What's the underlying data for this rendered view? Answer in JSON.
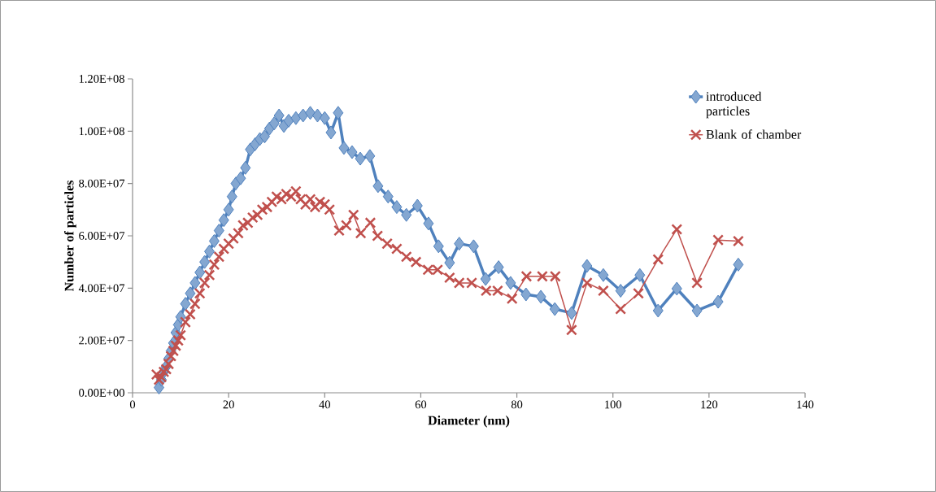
{
  "chart_data": {
    "type": "line",
    "xlabel": "Diameter (nm)",
    "ylabel": "Number of particles",
    "xlim": [
      0,
      140
    ],
    "xticks": [
      0,
      20,
      40,
      60,
      80,
      100,
      120,
      140
    ],
    "ylim": [
      0,
      120000000.0
    ],
    "yticks": [
      {
        "value": 0,
        "label": "0.00E+00"
      },
      {
        "value": 20000000.0,
        "label": "2.00E+07"
      },
      {
        "value": 40000000.0,
        "label": "4.00E+07"
      },
      {
        "value": 60000000.0,
        "label": "6.00E+07"
      },
      {
        "value": 80000000.0,
        "label": "8.00E+07"
      },
      {
        "value": 100000000.0,
        "label": "1.00E+08"
      },
      {
        "value": 120000000.0,
        "label": "1.20E+08"
      }
    ],
    "grid": false,
    "legend": "top right",
    "series": [
      {
        "name": "introduced particles",
        "color": "#4f81bd",
        "marker": "diamond",
        "x": [
          5.5,
          6,
          6.5,
          7,
          7.5,
          8,
          8.5,
          9,
          9.5,
          10,
          11,
          12,
          13,
          14,
          15,
          16,
          17,
          18,
          19,
          20,
          20.7,
          21.5,
          22.5,
          23.5,
          24.5,
          25.5,
          26.5,
          27.5,
          28.5,
          29.5,
          30.5,
          31.5,
          32.5,
          34,
          35.5,
          37,
          38.5,
          40,
          41.3,
          42.8,
          44,
          45.7,
          47.4,
          49.4,
          51.1,
          53.2,
          55,
          57,
          59.3,
          61.6,
          63.7,
          66,
          68,
          71,
          73.5,
          76.2,
          78.7,
          81.9,
          85,
          87.9,
          91.4,
          94.6,
          98,
          101.6,
          105.6,
          109.4,
          113.3,
          117.5,
          121.9,
          126.1
        ],
        "values": [
          2000000.0,
          5000000.0,
          8000000.0,
          10000000.0,
          13000000.0,
          16000000.0,
          19000000.0,
          23000000.0,
          26000000.0,
          29000000.0,
          34000000.0,
          38000000.0,
          42000000.0,
          46000000.0,
          50000000.0,
          54000000.0,
          58000000.0,
          62000000.0,
          66000000.0,
          70000000.0,
          75000000.0,
          80000000.0,
          82000000.0,
          86000000.0,
          93000000.0,
          95000000.0,
          97000000.0,
          98000000.0,
          101000000.0,
          103000000.0,
          106000000.0,
          102000000.0,
          104000000.0,
          105000000.0,
          106000000.0,
          107000000.0,
          106000000.0,
          105000000.0,
          99500000.0,
          107000000.0,
          93600000.0,
          92000000.0,
          89500000.0,
          90500000.0,
          79000000.0,
          75000000.0,
          71000000.0,
          68000000.0,
          71500000.0,
          64700000.0,
          56000000.0,
          49700000.0,
          57000000.0,
          56000000.0,
          43500000.0,
          48000000.0,
          42000000.0,
          37600000.0,
          36700000.0,
          32000000.0,
          30500000.0,
          48500000.0,
          45000000.0,
          39000000.0,
          45000000.0,
          31400000.0,
          39800000.0,
          31400000.0,
          34800000.0,
          49000000.0
        ]
      },
      {
        "name": "Blank of chamber",
        "color": "#c0504d",
        "marker": "cross",
        "x": [
          5,
          5.5,
          6,
          6.5,
          7,
          7.5,
          8,
          8.5,
          9,
          9.5,
          10,
          11,
          12,
          13,
          14,
          15,
          16,
          17,
          18,
          19,
          20,
          21,
          22,
          23,
          24,
          25,
          26,
          27,
          28,
          29,
          30,
          31,
          32,
          33,
          34,
          35,
          36,
          37,
          38,
          39,
          40,
          41,
          43,
          44.5,
          46,
          47.5,
          49.5,
          51,
          53,
          55,
          57,
          59,
          61.5,
          63.5,
          66,
          68,
          70.6,
          73.6,
          76,
          79,
          82,
          85.3,
          88,
          91.4,
          94.6,
          98,
          101.6,
          105.3,
          109.4,
          113.3,
          117.5,
          121.9,
          126.1
        ],
        "values": [
          7000000.0,
          5000000.0,
          6000000.0,
          8000000.0,
          9000000.0,
          11000000.0,
          14000000.0,
          16000000.0,
          18000000.0,
          20000000.0,
          22000000.0,
          27000000.0,
          30000000.0,
          34000000.0,
          38000000.0,
          42000000.0,
          45000000.0,
          49000000.0,
          52000000.0,
          55000000.0,
          57000000.0,
          59000000.0,
          61000000.0,
          64000000.0,
          65000000.0,
          67000000.0,
          68000000.0,
          70000000.0,
          71000000.0,
          73000000.0,
          75000000.0,
          74000000.0,
          76000000.0,
          75000000.0,
          77000000.0,
          74000000.0,
          72000000.0,
          74000000.0,
          71000000.0,
          73000000.0,
          72000000.0,
          70000000.0,
          62000000.0,
          64000000.0,
          68000000.0,
          61000000.0,
          65000000.0,
          60000000.0,
          57000000.0,
          55000000.0,
          52000000.0,
          50000000.0,
          47000000.0,
          47000000.0,
          44000000.0,
          42000000.0,
          42000000.0,
          39000000.0,
          39000000.0,
          36000000.0,
          44500000.0,
          44500000.0,
          44500000.0,
          24000000.0,
          42000000.0,
          39000000.0,
          32000000.0,
          38000000.0,
          51000000.0,
          62500000.0,
          42000000.0,
          58400000.0,
          58000000.0
        ]
      }
    ]
  }
}
